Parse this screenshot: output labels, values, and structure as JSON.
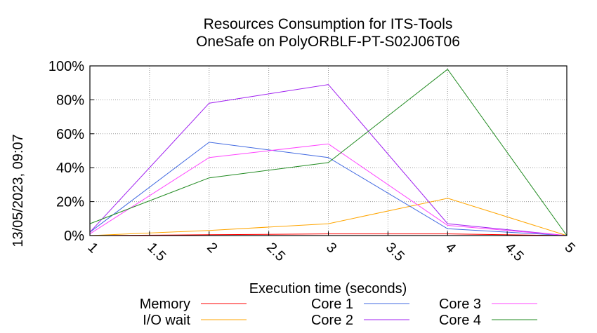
{
  "chart_data": {
    "type": "line",
    "title": "Resources Consumption for ITS-Tools",
    "subtitle": "OneSafe on PolyORBLF-PT-S02J06T06",
    "xlabel": "Execution time (seconds)",
    "ylabel": "",
    "timestamp": "13/05/2023, 09:07",
    "xlim": [
      1,
      5
    ],
    "ylim": [
      0,
      100
    ],
    "x_ticks": [
      "1",
      "1.5",
      "2",
      "2.5",
      "3",
      "3.5",
      "4",
      "4.5",
      "5"
    ],
    "y_ticks": [
      "0%",
      "20%",
      "40%",
      "60%",
      "80%",
      "100%"
    ],
    "grid": true,
    "legend_position": "bottom",
    "x": [
      1,
      2,
      3,
      4,
      5
    ],
    "series": [
      {
        "name": "Memory",
        "color": "#ff0000",
        "values": [
          0,
          0.5,
          1,
          1,
          0
        ]
      },
      {
        "name": "I/O wait",
        "color": "#ffa500",
        "values": [
          0,
          3,
          7,
          22,
          0
        ]
      },
      {
        "name": "Core 1",
        "color": "#4169e1",
        "values": [
          2,
          55,
          46,
          4,
          0
        ]
      },
      {
        "name": "Core 2",
        "color": "#a020f0",
        "values": [
          2,
          78,
          89,
          7,
          0
        ]
      },
      {
        "name": "Core 3",
        "color": "#ff44ff",
        "values": [
          1,
          46,
          54,
          6,
          0
        ]
      },
      {
        "name": "Core 4",
        "color": "#228b22",
        "values": [
          7,
          34,
          43,
          98,
          0
        ]
      }
    ]
  }
}
